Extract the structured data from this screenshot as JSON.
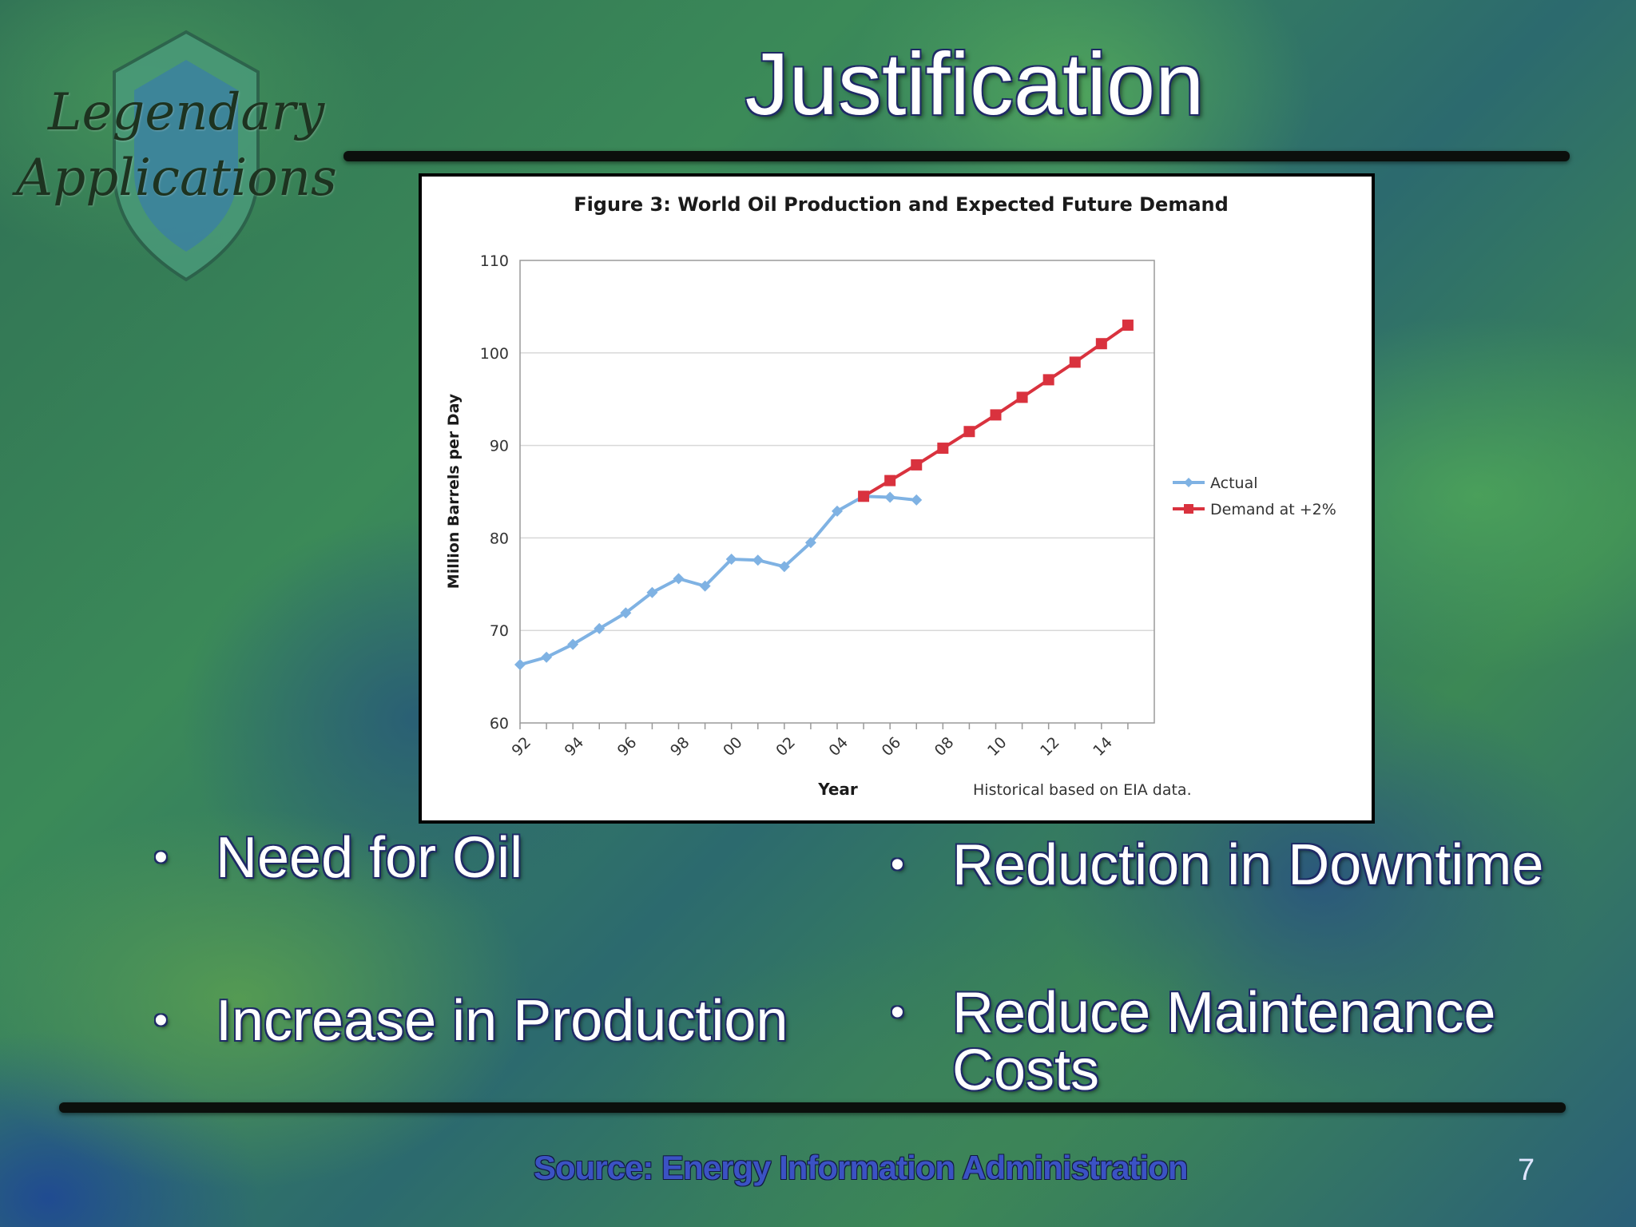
{
  "logo": {
    "line1": "Legendary",
    "line2": "Applications"
  },
  "title": "Justification",
  "chart_data": {
    "type": "line",
    "title": "Figure 3: World Oil Production and Expected Future Demand",
    "xlabel": "Year",
    "ylabel": "Million Barrels per Day",
    "note": "Historical based on EIA data.",
    "x_ticks": [
      "92",
      "94",
      "96",
      "98",
      "00",
      "02",
      "04",
      "06",
      "08",
      "10",
      "12",
      "14"
    ],
    "ylim": [
      60,
      110
    ],
    "y_ticks": [
      60,
      70,
      80,
      90,
      100,
      110
    ],
    "grid": true,
    "legend": "right",
    "series": [
      {
        "name": "Actual",
        "color": "#7fb2e3",
        "x": [
          1992,
          1993,
          1994,
          1995,
          1996,
          1997,
          1998,
          1999,
          2000,
          2001,
          2002,
          2003,
          2004,
          2005,
          2006,
          2007
        ],
        "values": [
          66.3,
          67.1,
          68.5,
          70.2,
          71.9,
          74.1,
          75.6,
          74.8,
          77.7,
          77.6,
          76.9,
          79.5,
          82.9,
          84.5,
          84.4,
          84.1
        ]
      },
      {
        "name": "Demand at +2%",
        "color": "#d9323e",
        "x": [
          2005,
          2006,
          2007,
          2008,
          2009,
          2010,
          2011,
          2012,
          2013,
          2014,
          2015
        ],
        "values": [
          84.5,
          86.2,
          87.9,
          89.7,
          91.5,
          93.3,
          95.2,
          97.1,
          99.0,
          101.0,
          103.0
        ]
      }
    ]
  },
  "bullets": {
    "b1": "Need for Oil",
    "b2": "Increase in Production",
    "b3": "Reduction in Downtime",
    "b4": "Reduce Maintenance Costs",
    "dot": "•"
  },
  "source": "Source: Energy Information Administration",
  "page_number": "7"
}
